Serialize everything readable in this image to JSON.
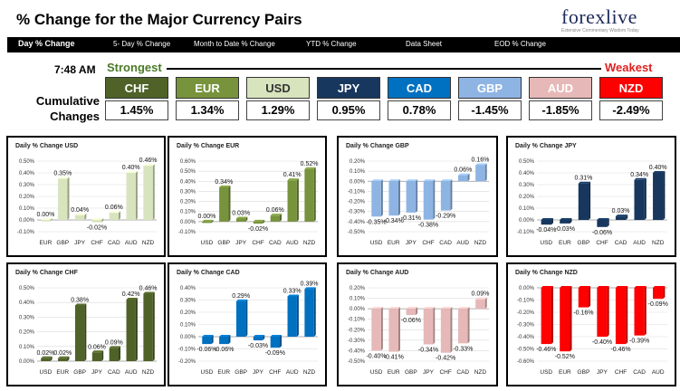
{
  "header": {
    "title": "% Change for the Major Currency Pairs",
    "logo": "forexlive",
    "logo_x": "X",
    "logo_tagline": "Extensive Commentary Wisdom Today"
  },
  "nav": {
    "items": [
      "Day % Change",
      "5- Day % Change",
      "Month to Date % Change",
      "YTD % Change",
      "Data Sheet",
      "EOD % Change"
    ]
  },
  "summary": {
    "time": "7:48 AM",
    "strongest": "Strongest",
    "weakest": "Weakest",
    "cumulative_label_1": "Cumulative",
    "cumulative_label_2": "Changes",
    "currencies": [
      {
        "name": "CHF",
        "value": "1.45%",
        "color": "#4f6228"
      },
      {
        "name": "EUR",
        "value": "1.34%",
        "color": "#77933c"
      },
      {
        "name": "USD",
        "value": "1.29%",
        "color": "#d7e4bd",
        "text_color": "#333333"
      },
      {
        "name": "JPY",
        "value": "0.95%",
        "color": "#17375e"
      },
      {
        "name": "CAD",
        "value": "0.78%",
        "color": "#0070c0"
      },
      {
        "name": "GBP",
        "value": "-1.45%",
        "color": "#8eb4e3"
      },
      {
        "name": "AUD",
        "value": "-1.85%",
        "color": "#e6b9b8"
      },
      {
        "name": "NZD",
        "value": "-2.49%",
        "color": "#ff0000"
      }
    ]
  },
  "chart_data": [
    {
      "type": "bar",
      "title": "Daily % Change USD",
      "categories": [
        "EUR",
        "GBP",
        "JPY",
        "CHF",
        "CAD",
        "AUD",
        "NZD"
      ],
      "values": [
        0.0,
        0.35,
        0.04,
        -0.02,
        0.06,
        0.4,
        0.46
      ],
      "labels": [
        "0.00%",
        "0.35%",
        "0.04%",
        "-0.02%",
        "0.06%",
        "0.40%",
        "0.46%"
      ],
      "ylim": [
        -0.1,
        0.5
      ],
      "ticks": [
        "0.50%",
        "0.40%",
        "0.30%",
        "0.20%",
        "0.10%",
        "0.00%",
        "-0.10%"
      ],
      "color": "#d7e4bd"
    },
    {
      "type": "bar",
      "title": "Daily % Change EUR",
      "categories": [
        "USD",
        "GBP",
        "JPY",
        "CHF",
        "CAD",
        "AUD",
        "NZD"
      ],
      "values": [
        0.0,
        0.34,
        0.03,
        -0.02,
        0.06,
        0.41,
        0.52
      ],
      "labels": [
        "0.00%",
        "0.34%",
        "0.03%",
        "-0.02%",
        "0.06%",
        "0.41%",
        "0.52%"
      ],
      "ylim": [
        -0.1,
        0.6
      ],
      "ticks": [
        "0.60%",
        "0.50%",
        "0.40%",
        "0.30%",
        "0.20%",
        "0.10%",
        "0.00%",
        "-0.10%"
      ],
      "color": "#77933c"
    },
    {
      "type": "bar",
      "title": "Daily % Change GBP",
      "categories": [
        "USD",
        "EUR",
        "JPY",
        "CHF",
        "CAD",
        "AUD",
        "NZD"
      ],
      "values": [
        -0.35,
        -0.34,
        -0.31,
        -0.38,
        -0.29,
        0.06,
        0.16
      ],
      "labels": [
        "-0.35%",
        "-0.34%",
        "-0.31%",
        "-0.38%",
        "-0.29%",
        "0.06%",
        "0.16%"
      ],
      "ylim": [
        -0.5,
        0.2
      ],
      "ticks": [
        "0.20%",
        "0.10%",
        "0.00%",
        "-0.10%",
        "-0.20%",
        "-0.30%",
        "-0.40%",
        "-0.50%"
      ],
      "color": "#8eb4e3"
    },
    {
      "type": "bar",
      "title": "Daily % Change JPY",
      "categories": [
        "USD",
        "EUR",
        "GBP",
        "CHF",
        "CAD",
        "AUD",
        "NZD"
      ],
      "values": [
        -0.04,
        -0.03,
        0.31,
        -0.06,
        0.03,
        0.34,
        0.4
      ],
      "labels": [
        "-0.04%",
        "-0.03%",
        "0.31%",
        "-0.06%",
        "0.03%",
        "0.34%",
        "0.40%"
      ],
      "ylim": [
        -0.1,
        0.5
      ],
      "ticks": [
        "0.50%",
        "0.40%",
        "0.30%",
        "0.20%",
        "0.10%",
        "0.00%",
        "-0.10%"
      ],
      "color": "#17375e"
    },
    {
      "type": "bar",
      "title": "Daily % Change CHF",
      "categories": [
        "USD",
        "EUR",
        "GBP",
        "JPY",
        "CAD",
        "AUD",
        "NZD"
      ],
      "values": [
        0.02,
        0.02,
        0.38,
        0.06,
        0.09,
        0.42,
        0.46
      ],
      "labels": [
        "0.02%",
        "0.02%",
        "0.38%",
        "0.06%",
        "0.09%",
        "0.42%",
        "0.46%"
      ],
      "ylim": [
        0.0,
        0.5
      ],
      "ticks": [
        "0.50%",
        "0.40%",
        "0.30%",
        "0.20%",
        "0.10%",
        "0.00%"
      ],
      "color": "#4f6228"
    },
    {
      "type": "bar",
      "title": "Daily % Change CAD",
      "categories": [
        "USD",
        "EUR",
        "GBP",
        "JPY",
        "CHF",
        "AUD",
        "NZD"
      ],
      "values": [
        -0.06,
        -0.06,
        0.29,
        -0.03,
        -0.09,
        0.33,
        0.39
      ],
      "labels": [
        "-0.06%",
        "-0.06%",
        "0.29%",
        "-0.03%",
        "-0.09%",
        "0.33%",
        "0.39%"
      ],
      "ylim": [
        -0.2,
        0.4
      ],
      "ticks": [
        "0.40%",
        "0.30%",
        "0.20%",
        "0.10%",
        "0.00%",
        "-0.10%",
        "-0.20%"
      ],
      "color": "#0070c0"
    },
    {
      "type": "bar",
      "title": "Daily % Change AUD",
      "categories": [
        "USD",
        "EUR",
        "GBP",
        "JPY",
        "CHF",
        "CAD",
        "NZD"
      ],
      "values": [
        -0.4,
        -0.41,
        -0.06,
        -0.34,
        -0.42,
        -0.33,
        0.09
      ],
      "labels": [
        "-0.40%",
        "-0.41%",
        "-0.06%",
        "-0.34%",
        "-0.42%",
        "-0.33%",
        "0.09%"
      ],
      "ylim": [
        -0.5,
        0.2
      ],
      "ticks": [
        "0.20%",
        "0.10%",
        "0.00%",
        "-0.10%",
        "-0.20%",
        "-0.30%",
        "-0.40%",
        "-0.50%"
      ],
      "color": "#e6b9b8"
    },
    {
      "type": "bar",
      "title": "Daily % Change NZD",
      "categories": [
        "USD",
        "EUR",
        "GBP",
        "JPY",
        "CHF",
        "CAD",
        "AUD"
      ],
      "values": [
        -0.46,
        -0.52,
        -0.16,
        -0.4,
        -0.46,
        -0.39,
        -0.09
      ],
      "labels": [
        "-0.46%",
        "-0.52%",
        "-0.16%",
        "-0.40%",
        "-0.46%",
        "-0.39%",
        "-0.09%"
      ],
      "ylim": [
        -0.6,
        0.0
      ],
      "ticks": [
        "0.00%",
        "-0.10%",
        "-0.20%",
        "-0.30%",
        "-0.40%",
        "-0.50%",
        "-0.60%"
      ],
      "color": "#ff0000"
    }
  ]
}
